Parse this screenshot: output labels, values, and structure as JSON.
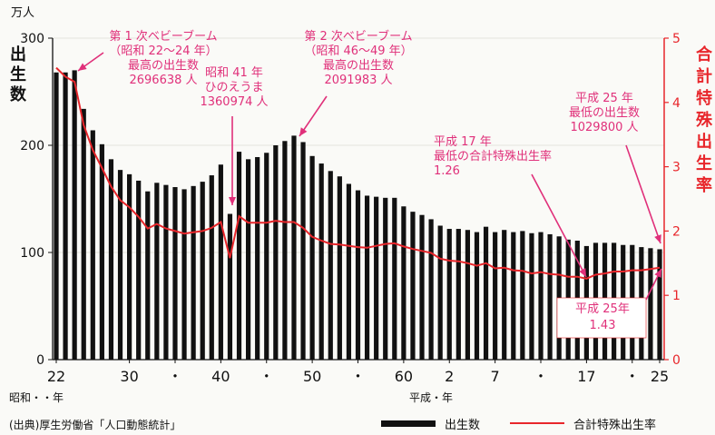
{
  "chart_data": {
    "type": "bar+line",
    "left_axis": {
      "unit": "万人",
      "title": "出生数",
      "ylim": [
        0,
        300
      ],
      "ticks": [
        0,
        100,
        200,
        300
      ]
    },
    "right_axis": {
      "title": "合計特殊出生率",
      "ylim": [
        0,
        5
      ],
      "ticks": [
        0,
        1,
        2,
        3,
        4,
        5
      ]
    },
    "x_era_labels": {
      "showa": "昭和・・年",
      "heisei": "平成・年"
    },
    "x_tick_labels": [
      {
        "year": 1947,
        "label": "22"
      },
      {
        "year": 1955,
        "label": "30"
      },
      {
        "year": 1960,
        "label": "・"
      },
      {
        "year": 1965,
        "label": "40"
      },
      {
        "year": 1970,
        "label": "・"
      },
      {
        "year": 1975,
        "label": "50"
      },
      {
        "year": 1980,
        "label": "・"
      },
      {
        "year": 1985,
        "label": "60"
      },
      {
        "year": 1990,
        "label": "2"
      },
      {
        "year": 1995,
        "label": "7"
      },
      {
        "year": 2000,
        "label": "・"
      },
      {
        "year": 2005,
        "label": "17"
      },
      {
        "year": 2010,
        "label": "・"
      },
      {
        "year": 2013,
        "label": "25"
      }
    ],
    "years": [
      1947,
      1948,
      1949,
      1950,
      1951,
      1952,
      1953,
      1954,
      1955,
      1956,
      1957,
      1958,
      1959,
      1960,
      1961,
      1962,
      1963,
      1964,
      1965,
      1966,
      1967,
      1968,
      1969,
      1970,
      1971,
      1972,
      1973,
      1974,
      1975,
      1976,
      1977,
      1978,
      1979,
      1980,
      1981,
      1982,
      1983,
      1984,
      1985,
      1986,
      1987,
      1988,
      1989,
      1990,
      1991,
      1992,
      1993,
      1994,
      1995,
      1996,
      1997,
      1998,
      1999,
      2000,
      2001,
      2002,
      2003,
      2004,
      2005,
      2006,
      2007,
      2008,
      2009,
      2010,
      2011,
      2012,
      2013
    ],
    "series": [
      {
        "name": "出生数",
        "axis": "left",
        "kind": "bar",
        "color": "#111111",
        "values": [
          268,
          268,
          270,
          234,
          214,
          201,
          187,
          177,
          173,
          167,
          157,
          165,
          163,
          161,
          159,
          162,
          166,
          172,
          182,
          136,
          194,
          187,
          189,
          193,
          200,
          204,
          209,
          203,
          190,
          183,
          176,
          171,
          164,
          158,
          153,
          152,
          151,
          151,
          143,
          138,
          135,
          131,
          125,
          122,
          122,
          121,
          119,
          124,
          119,
          121,
          119,
          120,
          118,
          119,
          117,
          115,
          112,
          111,
          106,
          109,
          109,
          109,
          107,
          107,
          105,
          104,
          103
        ]
      },
      {
        "name": "合計特殊出生率",
        "axis": "right",
        "kind": "line",
        "color": "#e8262b",
        "values": [
          4.54,
          4.4,
          4.32,
          3.65,
          3.26,
          2.98,
          2.69,
          2.48,
          2.37,
          2.22,
          2.04,
          2.11,
          2.04,
          2.0,
          1.96,
          1.98,
          2.0,
          2.05,
          2.14,
          1.58,
          2.23,
          2.13,
          2.13,
          2.13,
          2.16,
          2.14,
          2.14,
          2.05,
          1.91,
          1.85,
          1.8,
          1.79,
          1.77,
          1.75,
          1.74,
          1.77,
          1.8,
          1.81,
          1.76,
          1.72,
          1.69,
          1.66,
          1.57,
          1.54,
          1.53,
          1.5,
          1.46,
          1.5,
          1.42,
          1.43,
          1.39,
          1.38,
          1.34,
          1.36,
          1.33,
          1.32,
          1.29,
          1.29,
          1.26,
          1.32,
          1.34,
          1.37,
          1.37,
          1.39,
          1.39,
          1.41,
          1.43
        ]
      }
    ],
    "annotations": [
      {
        "id": "boom1",
        "lines": [
          "第 1 次ベビーブーム",
          "（昭和 22～24 年）",
          "最高の出生数",
          "2696638 人"
        ]
      },
      {
        "id": "hinoe",
        "lines": [
          "昭和 41 年",
          "ひのえうま",
          "1360974 人"
        ]
      },
      {
        "id": "boom2",
        "lines": [
          "第 2 次ベビーブーム",
          "（昭和 46～49 年）",
          "最高の出生数",
          "2091983 人"
        ]
      },
      {
        "id": "h17",
        "lines": [
          "平成 17 年",
          "最低の合計特殊出生率",
          "1.26"
        ]
      },
      {
        "id": "h25births",
        "lines": [
          "平成 25 年",
          "最低の出生数",
          "1029800 人"
        ]
      },
      {
        "id": "h25rate",
        "lines": [
          "平成 25年",
          "1.43"
        ]
      }
    ],
    "source": "(出典)厚生労働省「人口動態統計」",
    "legend": {
      "position": "bottom-right",
      "entries": [
        "出生数",
        "合計特殊出生率"
      ]
    }
  }
}
